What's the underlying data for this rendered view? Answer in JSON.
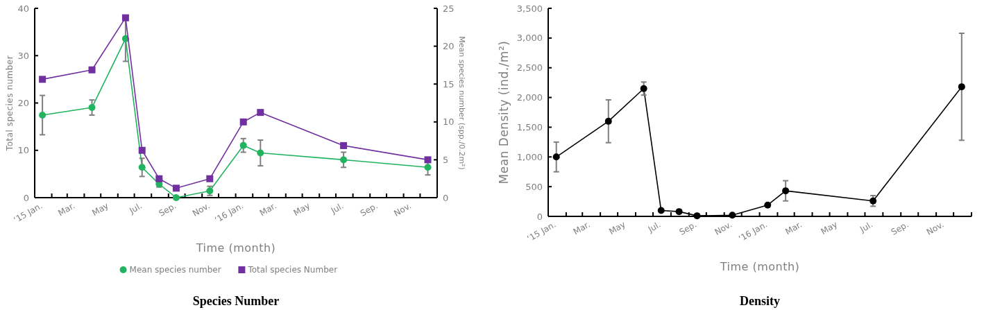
{
  "chart_data": [
    {
      "type": "line",
      "title": "Species  Number",
      "xlabel": "Time (month)",
      "ylabel": "Total species number",
      "y2label": "Mean species number (spp./0.2m²)",
      "legend": "bottom",
      "grid": false,
      "x": [
        "2015-01-15",
        "2015-04-15",
        "2015-06-15",
        "2015-07-15",
        "2015-08-15",
        "2015-09-15",
        "2015-11-15",
        "2016-01-15",
        "2016-02-15",
        "2016-07-15",
        "2016-12-15"
      ],
      "xlim": [
        "2015-01-01",
        "2017-01-01"
      ],
      "xticks": [
        {
          "value": "2015-01-01",
          "label": "‘15 Jan."
        },
        {
          "value": "2015-03-01",
          "label": "Mar."
        },
        {
          "value": "2015-05-01",
          "label": "May"
        },
        {
          "value": "2015-07-01",
          "label": "Jul."
        },
        {
          "value": "2015-09-01",
          "label": "Sep."
        },
        {
          "value": "2015-11-01",
          "label": "Nov."
        },
        {
          "value": "2016-01-01",
          "label": "‘16 Jan."
        },
        {
          "value": "2016-03-01",
          "label": "Mar."
        },
        {
          "value": "2016-05-01",
          "label": "May"
        },
        {
          "value": "2016-07-01",
          "label": "Jul."
        },
        {
          "value": "2016-09-01",
          "label": "Sep."
        },
        {
          "value": "2016-11-01",
          "label": "Nov."
        },
        {
          "value": "2015-02-01",
          "label": null
        },
        {
          "value": "2015-04-01",
          "label": null
        },
        {
          "value": "2015-06-01",
          "label": null
        },
        {
          "value": "2015-08-01",
          "label": null
        },
        {
          "value": "2015-10-01",
          "label": null
        },
        {
          "value": "2015-12-01",
          "label": null
        },
        {
          "value": "2016-02-01",
          "label": null
        },
        {
          "value": "2016-04-01",
          "label": null
        },
        {
          "value": "2016-06-01",
          "label": null
        },
        {
          "value": "2016-08-01",
          "label": null
        },
        {
          "value": "2016-10-01",
          "label": null
        },
        {
          "value": "2016-12-01",
          "label": null
        },
        {
          "value": "2017-01-01",
          "label": null
        }
      ],
      "ylim": [
        0,
        40
      ],
      "yticks": [
        0,
        10,
        20,
        30,
        40
      ],
      "y2lim": [
        0,
        25
      ],
      "y2ticks": [
        0,
        5,
        10,
        15,
        20,
        25
      ],
      "series": [
        {
          "name": "Mean species number",
          "color": "#21b35f",
          "marker": "circle",
          "axis": "y2",
          "values": [
            10.9,
            11.9,
            21,
            4,
            1.8,
            0,
            0.9,
            6.9,
            5.9,
            5,
            4
          ],
          "errors": [
            2.6,
            1,
            3,
            1.2,
            0.4,
            null,
            0.6,
            0.9,
            1.7,
            1,
            1
          ]
        },
        {
          "name": "Total species Number",
          "color": "#7030a0",
          "marker": "square",
          "values": [
            25,
            27,
            38,
            10,
            4,
            2,
            4,
            16,
            18,
            11,
            8
          ]
        }
      ]
    },
    {
      "type": "line",
      "title": "Density",
      "xlabel": "Time (month)",
      "ylabel": "Mean Density (ind./m²)",
      "legend": false,
      "grid": false,
      "x": [
        "2015-01-15",
        "2015-04-15",
        "2015-06-15",
        "2015-07-15",
        "2015-08-15",
        "2015-09-15",
        "2015-11-15",
        "2016-01-15",
        "2016-02-15",
        "2016-07-15",
        "2016-12-15"
      ],
      "xlim": [
        "2015-01-01",
        "2017-01-01"
      ],
      "xticks": [
        {
          "value": "2015-01-01",
          "label": "‘15 Jan."
        },
        {
          "value": "2015-03-01",
          "label": "Mar."
        },
        {
          "value": "2015-05-01",
          "label": "May"
        },
        {
          "value": "2015-07-01",
          "label": "Jul."
        },
        {
          "value": "2015-09-01",
          "label": "Sep."
        },
        {
          "value": "2015-11-01",
          "label": "Nov."
        },
        {
          "value": "2016-01-01",
          "label": "‘16 Jan."
        },
        {
          "value": "2016-03-01",
          "label": "Mar."
        },
        {
          "value": "2016-05-01",
          "label": "May"
        },
        {
          "value": "2016-07-01",
          "label": "Jul."
        },
        {
          "value": "2016-09-01",
          "label": "Sep."
        },
        {
          "value": "2016-11-01",
          "label": "Nov."
        },
        {
          "value": "2015-02-01",
          "label": null
        },
        {
          "value": "2015-04-01",
          "label": null
        },
        {
          "value": "2015-06-01",
          "label": null
        },
        {
          "value": "2015-08-01",
          "label": null
        },
        {
          "value": "2015-10-01",
          "label": null
        },
        {
          "value": "2015-12-01",
          "label": null
        },
        {
          "value": "2016-02-01",
          "label": null
        },
        {
          "value": "2016-04-01",
          "label": null
        },
        {
          "value": "2016-06-01",
          "label": null
        },
        {
          "value": "2016-08-01",
          "label": null
        },
        {
          "value": "2016-10-01",
          "label": null
        },
        {
          "value": "2016-12-01",
          "label": null
        },
        {
          "value": "2017-01-01",
          "label": null
        }
      ],
      "ylim": [
        0,
        3500
      ],
      "yticks": [
        {
          "value": 0,
          "label": "0"
        },
        {
          "value": 500,
          "label": "500"
        },
        {
          "value": 1000,
          "label": "1,000"
        },
        {
          "value": 1500,
          "label": "1,500"
        },
        {
          "value": 2000,
          "label": "2,000"
        },
        {
          "value": 2500,
          "label": "2,500"
        },
        {
          "value": 3000,
          "label": "3,000"
        },
        {
          "value": 3500,
          "label": "3,500"
        }
      ],
      "series": [
        {
          "color": "#000000",
          "marker": "circle",
          "values": [
            1000,
            1600,
            2150,
            100,
            80,
            10,
            20,
            190,
            430,
            260,
            2180
          ],
          "errors": [
            250,
            360,
            110,
            null,
            null,
            null,
            null,
            null,
            170,
            90,
            900
          ]
        }
      ]
    }
  ]
}
